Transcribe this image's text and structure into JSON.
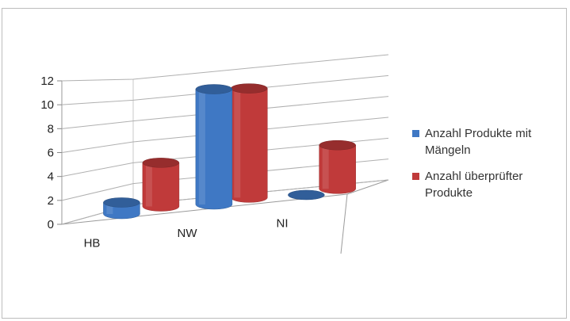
{
  "chart_data": {
    "type": "bar",
    "subtype": "3d-cylinder",
    "categories": [
      "HB",
      "NW",
      "NI"
    ],
    "series": [
      {
        "name": "Anzahl Produkte mit Mängeln",
        "values": [
          1,
          10,
          0
        ],
        "color": "#3f78c4"
      },
      {
        "name": "Anzahl überprüfter Produkte",
        "values": [
          4,
          10,
          4
        ],
        "color": "#c03a3a"
      }
    ],
    "ylim": [
      0,
      12
    ],
    "yticks": [
      "0",
      "2",
      "4",
      "6",
      "8",
      "10",
      "12"
    ],
    "grid": true,
    "legend_position": "right"
  }
}
